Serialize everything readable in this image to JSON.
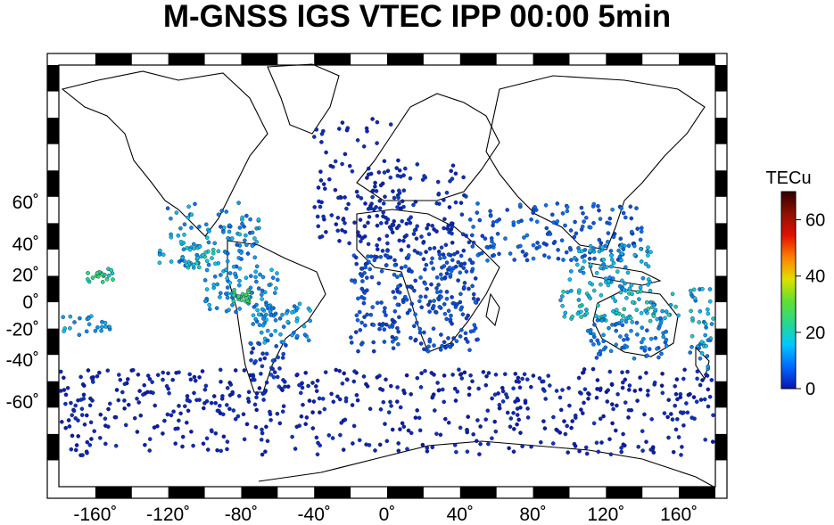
{
  "title": "M-GNSS IGS VTEC IPP 00:00 5min",
  "map": {
    "projection": "mercator",
    "lon_range": [
      -180,
      180
    ],
    "lat_range": [
      -80,
      85
    ],
    "lon_ticks": [
      {
        "value": -160,
        "label": "-160˚"
      },
      {
        "value": -120,
        "label": "-120˚"
      },
      {
        "value": -80,
        "label": "-80˚"
      },
      {
        "value": -40,
        "label": "-40˚"
      },
      {
        "value": 0,
        "label": "0˚"
      },
      {
        "value": 40,
        "label": "40˚"
      },
      {
        "value": 80,
        "label": "80˚"
      },
      {
        "value": 120,
        "label": "120˚"
      },
      {
        "value": 160,
        "label": "160˚"
      }
    ],
    "lat_ticks": [
      {
        "value": 60,
        "label": "60˚"
      },
      {
        "value": 40,
        "label": "40˚"
      },
      {
        "value": 20,
        "label": "20˚"
      },
      {
        "value": 0,
        "label": "0˚"
      },
      {
        "value": -20,
        "label": "-20˚"
      },
      {
        "value": -40,
        "label": "-40˚"
      },
      {
        "value": -60,
        "label": "-60˚"
      }
    ],
    "frame": "checkered black/white border",
    "land_outline_color": "#000000"
  },
  "colorbar": {
    "label": "TECu",
    "range": [
      0,
      70
    ],
    "ticks": [
      {
        "value": 0,
        "label": "0"
      },
      {
        "value": 20,
        "label": "20"
      },
      {
        "value": 40,
        "label": "40"
      },
      {
        "value": 60,
        "label": "60"
      }
    ],
    "colormap": [
      "#0a14b4",
      "#0068ff",
      "#00c8ff",
      "#28d88c",
      "#60e030",
      "#e0e000",
      "#ff8000",
      "#e01000",
      "#901000",
      "#300000"
    ]
  },
  "chart_data": {
    "type": "scatter",
    "value_unit": "TECu",
    "regions": [
      {
        "lon": [
          -125,
          -70
        ],
        "lat": [
          25,
          60
        ],
        "tec": [
          6,
          18
        ]
      },
      {
        "lon": [
          -110,
          -95
        ],
        "lat": [
          25,
          40
        ],
        "tec": [
          15,
          22
        ]
      },
      {
        "lon": [
          -100,
          -60
        ],
        "lat": [
          -10,
          25
        ],
        "tec": [
          8,
          16
        ]
      },
      {
        "lon": [
          -85,
          -75
        ],
        "lat": [
          0,
          10
        ],
        "tec": [
          20,
          28
        ]
      },
      {
        "lon": [
          -75,
          -40
        ],
        "lat": [
          -30,
          0
        ],
        "tec": [
          8,
          16
        ]
      },
      {
        "lon": [
          -75,
          -55
        ],
        "lat": [
          -55,
          -30
        ],
        "tec": [
          2,
          6
        ]
      },
      {
        "lon": [
          -165,
          -150
        ],
        "lat": [
          15,
          25
        ],
        "tec": [
          18,
          26
        ]
      },
      {
        "lon": [
          -180,
          -150
        ],
        "lat": [
          -25,
          -10
        ],
        "tec": [
          10,
          16
        ]
      },
      {
        "lon": [
          -10,
          45
        ],
        "lat": [
          35,
          72
        ],
        "tec": [
          1,
          4
        ]
      },
      {
        "lon": [
          45,
          140
        ],
        "lat": [
          30,
          60
        ],
        "tec": [
          4,
          10
        ]
      },
      {
        "lon": [
          -20,
          50
        ],
        "lat": [
          -35,
          35
        ],
        "tec": [
          3,
          8
        ]
      },
      {
        "lon": [
          100,
          145
        ],
        "lat": [
          10,
          40
        ],
        "tec": [
          10,
          18
        ]
      },
      {
        "lon": [
          95,
          160
        ],
        "lat": [
          -15,
          10
        ],
        "tec": [
          12,
          22
        ]
      },
      {
        "lon": [
          110,
          155
        ],
        "lat": [
          -40,
          -12
        ],
        "tec": [
          6,
          12
        ]
      },
      {
        "lon": [
          165,
          180
        ],
        "lat": [
          -45,
          10
        ],
        "tec": [
          8,
          20
        ]
      },
      {
        "lon": [
          -180,
          180
        ],
        "lat": [
          -75,
          -45
        ],
        "tec": [
          0,
          3
        ]
      },
      {
        "lon": [
          -40,
          10
        ],
        "lat": [
          40,
          80
        ],
        "tec": [
          1,
          3
        ]
      }
    ]
  }
}
